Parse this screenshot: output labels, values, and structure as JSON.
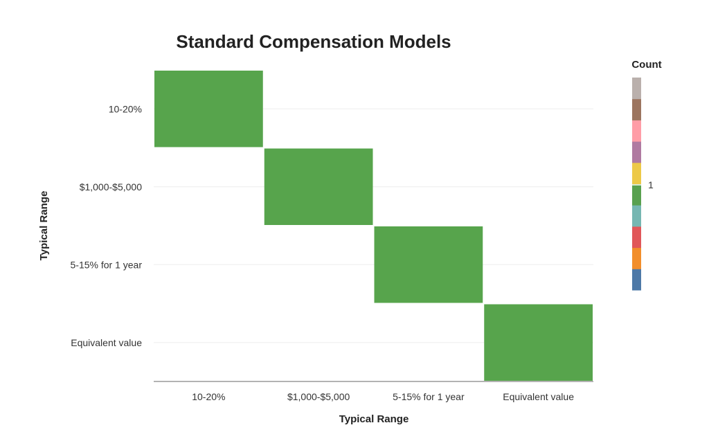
{
  "chart_data": {
    "type": "heatmap",
    "title": "Standard Compensation Models",
    "xlabel": "Typical Range",
    "ylabel": "Typical Range",
    "x_categories": [
      "10-20%",
      "$1,000-$5,000",
      "5-15% for 1 year",
      "Equivalent value"
    ],
    "y_categories": [
      "10-20%",
      "$1,000-$5,000",
      "5-15% for 1 year",
      "Equivalent value"
    ],
    "cells": [
      {
        "x": "10-20%",
        "y": "10-20%",
        "value": 1
      },
      {
        "x": "$1,000-$5,000",
        "y": "$1,000-$5,000",
        "value": 1
      },
      {
        "x": "5-15% for 1 year",
        "y": "5-15% for 1 year",
        "value": 1
      },
      {
        "x": "Equivalent value",
        "y": "Equivalent value",
        "value": 1
      }
    ],
    "legend": {
      "title": "Count",
      "ticks": [
        "1"
      ],
      "placement": "right"
    },
    "grid": true,
    "colors": {
      "cell": "#57a44c",
      "colorscale": [
        "#4e79a7",
        "#f28e2b",
        "#e15759",
        "#76b7b2",
        "#59a14f",
        "#edc948",
        "#b07aa1",
        "#ff9da7",
        "#9c755f",
        "#bab0ac"
      ]
    }
  }
}
